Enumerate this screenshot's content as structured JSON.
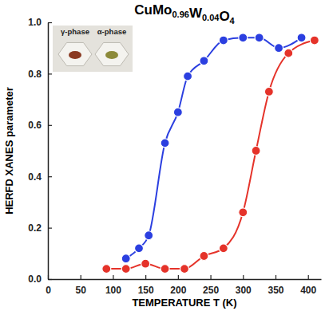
{
  "chart_data": {
    "type": "line",
    "title": "CuMo0.96W0.04O4",
    "x_label": "TEMPERATURE T (K)",
    "y_label": "HERFD XANES parameter",
    "xlim": [
      0,
      420
    ],
    "xticks": [
      0,
      50,
      100,
      150,
      200,
      250,
      300,
      350,
      400
    ],
    "ylim": [
      0,
      1
    ],
    "yticks": [
      {
        "value": 0,
        "label": "0.0"
      },
      0.2,
      0.4,
      0.6,
      0.8,
      {
        "value": 1,
        "label": "1.0"
      }
    ],
    "annotations": [
      "γ-phase",
      "α-phase"
    ],
    "series": [
      {
        "color": "#2b3fe0",
        "marker": "circle",
        "line_style": "solid",
        "x": [
          120,
          140,
          155,
          180,
          200,
          215,
          240,
          270,
          300,
          325,
          355,
          390
        ],
        "values": [
          0.08,
          0.12,
          0.17,
          0.53,
          0.65,
          0.79,
          0.85,
          0.93,
          0.94,
          0.94,
          0.9,
          0.94
        ]
      },
      {
        "color": "#e5332a",
        "marker": "circle",
        "line_style": "solid",
        "x": [
          90,
          120,
          150,
          180,
          210,
          240,
          270,
          300,
          320,
          340,
          370,
          410
        ],
        "values": [
          0.04,
          0.04,
          0.06,
          0.04,
          0.04,
          0.09,
          0.12,
          0.26,
          0.5,
          0.73,
          0.88,
          0.93
        ]
      }
    ]
  }
}
